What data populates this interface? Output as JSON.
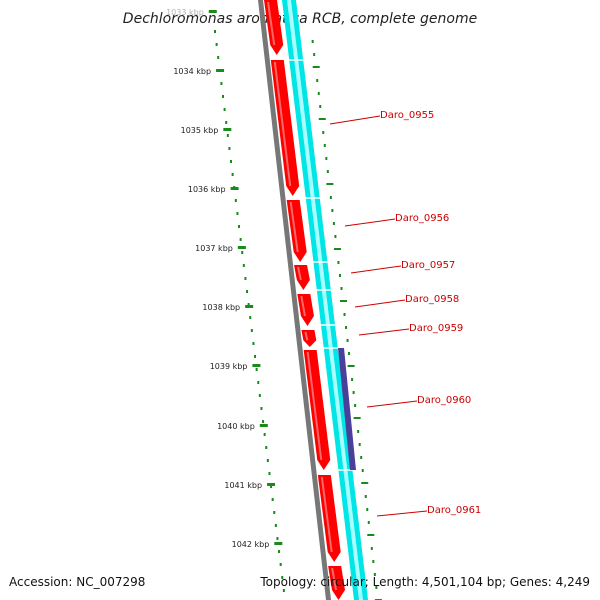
{
  "title": "Dechloromonas aromatica RCB, complete genome",
  "footer": {
    "accession": "Accession: NC_007298",
    "summary": "Topology: circular; Length: 4,501,104 bp; Genes: 4,249"
  },
  "ticks": [
    "1033 kbp",
    "1034 kbp",
    "1035 kbp",
    "1036 kbp",
    "1037 kbp",
    "1038 kbp",
    "1039 kbp",
    "1040 kbp",
    "1041 kbp",
    "1042 kbp"
  ],
  "genes": [
    {
      "label": "Daro_0955"
    },
    {
      "label": "Daro_0956"
    },
    {
      "label": "Daro_0957"
    },
    {
      "label": "Daro_0958"
    },
    {
      "label": "Daro_0959"
    },
    {
      "label": "Daro_0960"
    },
    {
      "label": "Daro_0961"
    }
  ],
  "colors": {
    "backbone": "#777777",
    "gene_forward": "#ff0000",
    "cds_track": "#00e5e5",
    "highlight_track": "#4a3f99",
    "tick": "#1a8a1a",
    "label": "#cc0000"
  }
}
